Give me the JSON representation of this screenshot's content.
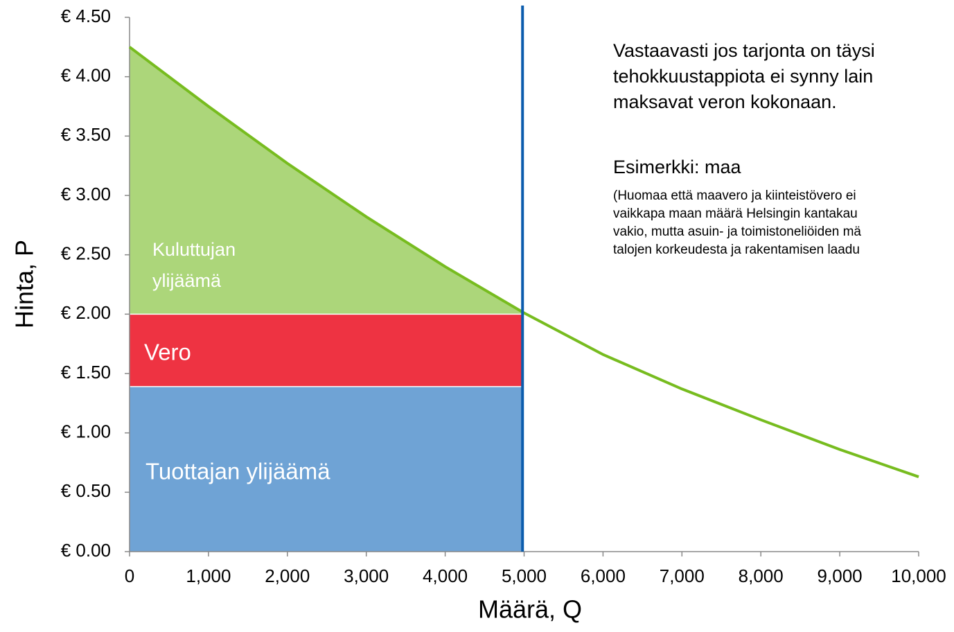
{
  "chart_data": {
    "type": "line",
    "xlabel": "Määrä, Q",
    "ylabel": "Hinta, P",
    "xlim": [
      0,
      10000
    ],
    "ylim": [
      0,
      4.5
    ],
    "xticks": [
      0,
      {
        "value": 1000,
        "label": "1,000"
      },
      {
        "value": 2000,
        "label": "2,000"
      },
      {
        "value": 3000,
        "label": "3,000"
      },
      {
        "value": 4000,
        "label": "4,000"
      },
      {
        "value": 5000,
        "label": "5,000"
      },
      {
        "value": 6000,
        "label": "6,000"
      },
      {
        "value": 7000,
        "label": "7,000"
      },
      {
        "value": 8000,
        "label": "8,000"
      },
      {
        "value": 9000,
        "label": "9,000"
      },
      {
        "value": 10000,
        "label": "10,000"
      }
    ],
    "yticks": [
      {
        "value": 0,
        "label": "€ 0.00"
      },
      {
        "value": 0.5,
        "label": "€ 0.50"
      },
      {
        "value": 1,
        "label": "€ 1.00"
      },
      {
        "value": 1.5,
        "label": "€ 1.50"
      },
      {
        "value": 2,
        "label": "€ 2.00"
      },
      {
        "value": 2.5,
        "label": "€ 2.50"
      },
      {
        "value": 3,
        "label": "€ 3.00"
      },
      {
        "value": 3.5,
        "label": "€ 3.50"
      },
      {
        "value": 4,
        "label": "€ 4.00"
      },
      {
        "value": 4.5,
        "label": "€ 4.50"
      }
    ],
    "x": [
      0,
      1000,
      2000,
      3000,
      4000,
      5000,
      6000,
      7000,
      8000,
      9000,
      10000
    ],
    "values": [
      4.25,
      3.75,
      3.27,
      2.82,
      2.4,
      2.01,
      1.66,
      1.37,
      1.11,
      0.86,
      0.63
    ],
    "color": "#77bc1f",
    "quantity_line": {
      "x": 4980,
      "color": "#0b5cad"
    },
    "regions": [
      {
        "label": [
          "Kuluttujan",
          "ylijäämä"
        ],
        "lower": 2.0,
        "color": "#acd67a"
      },
      {
        "label": [
          "Vero"
        ],
        "lower": 1.39,
        "upper": 2.0,
        "color": "#ee3342"
      },
      {
        "label": [
          "Tuottajan ylijäämä"
        ],
        "lower": 0,
        "upper": 1.39,
        "color": "#6fa3d5"
      }
    ],
    "annotation": {
      "lines": [
        "Vastaavasti jos tarjonta on täysi",
        "tehokkuustappiota ei synny lain",
        "maksavat veron kokonaan."
      ],
      "example": "Esimerkki: maa",
      "note": [
        "(Huomaa että maavero ja kiinteistövero ei",
        "vaikkapa maan määrä Helsingin kantakau",
        "vakio, mutta asuin- ja toimistoneliöiden mä",
        "talojen korkeudesta ja rakentamisen laadu"
      ]
    }
  }
}
